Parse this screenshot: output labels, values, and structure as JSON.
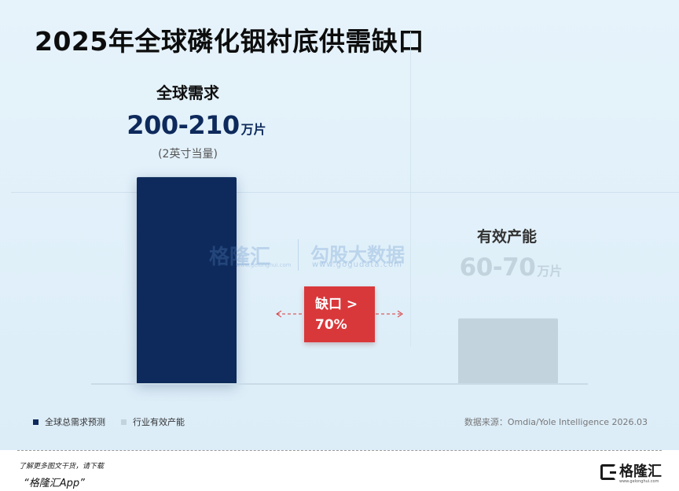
{
  "title": "2025年全球磷化铟衬底供需缺口",
  "demand": {
    "label": "全球需求",
    "value": "200-210",
    "unit": "万片",
    "note": "(2英寸当量)"
  },
  "supply": {
    "label": "有效产能",
    "value": "60-70",
    "unit": "万片"
  },
  "gap": {
    "line1": "缺口 >",
    "line2": "70%"
  },
  "watermark": {
    "brand1": "格隆汇",
    "brand1_sub": "www.gelonghui.com",
    "brand2": "勾股大数据",
    "brand2_sub": "www.gogudata.com"
  },
  "legend": [
    {
      "name": "全球总需求预测",
      "color": "#0e2a5c"
    },
    {
      "name": "行业有效产能",
      "color": "#c3d3de"
    }
  ],
  "source": "数据来源：Omdia/Yole Intelligence 2026.03",
  "footer": {
    "line1": "了解更多图文干货，请下载",
    "line2": "“格隆汇App”",
    "logo_text": "格隆汇",
    "logo_sub": "www.gelonghui.com"
  },
  "chart_data": {
    "type": "bar",
    "categories": [
      "全球需求",
      "有效产能"
    ],
    "values": [
      205,
      65
    ],
    "ranges": [
      [
        200,
        210
      ],
      [
        60,
        70
      ]
    ],
    "unit": "万片",
    "colors": [
      "#0e2a5c",
      "#c3d3de"
    ],
    "ylim": [
      0,
      230
    ],
    "grid": false,
    "legend_position": "bottom-left"
  }
}
